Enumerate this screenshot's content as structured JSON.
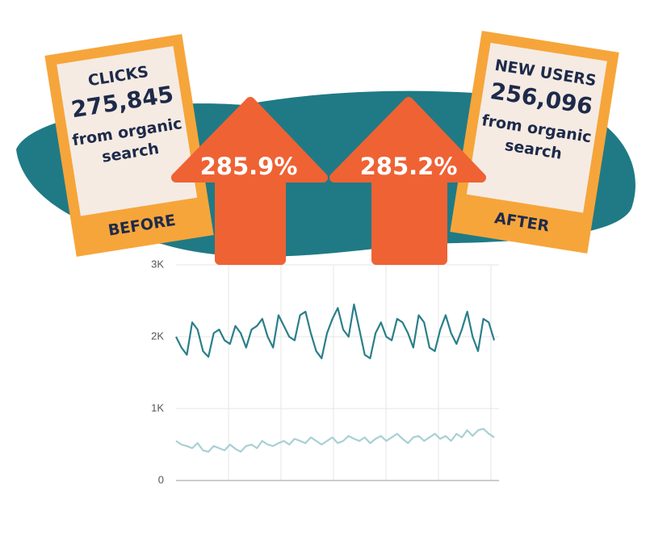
{
  "cards": [
    {
      "label": "CLICKS",
      "value": "275,845",
      "caption": [
        "from organic",
        "search"
      ],
      "tag": "BEFORE"
    },
    {
      "label": "NEW USERS",
      "value": "256,096",
      "caption": [
        "from organic",
        "search"
      ],
      "tag": "AFTER"
    }
  ],
  "arrows": [
    "285.9%",
    "285.2%"
  ],
  "chart_data": {
    "type": "line",
    "ylim": [
      0,
      3000
    ],
    "yticks": [
      0,
      {
        "value": 1000,
        "label": "1K"
      },
      {
        "value": 2000,
        "label": "2K"
      },
      {
        "value": 3000,
        "label": "3K"
      }
    ],
    "grid": true,
    "series": [
      {
        "color": "#2a7f8a",
        "values": [
          2000,
          1850,
          1750,
          2200,
          2100,
          1800,
          1720,
          2050,
          2100,
          1950,
          1900,
          2150,
          2050,
          1850,
          2100,
          2150,
          2250,
          2000,
          1850,
          2300,
          2150,
          2000,
          1950,
          2300,
          2350,
          2050,
          1800,
          1700,
          2050,
          2250,
          2400,
          2100,
          2000,
          2450,
          2100,
          1750,
          1700,
          2050,
          2200,
          2000,
          1950,
          2250,
          2200,
          2050,
          1850,
          2300,
          2200,
          1850,
          1800,
          2100,
          2300,
          2050,
          1900,
          2100,
          2350,
          2000,
          1800,
          2250,
          2200,
          1950
        ]
      },
      {
        "color": "#a8d0d4",
        "values": [
          550,
          500,
          480,
          450,
          520,
          420,
          400,
          480,
          450,
          420,
          500,
          440,
          400,
          480,
          500,
          450,
          550,
          500,
          480,
          520,
          550,
          500,
          580,
          550,
          520,
          600,
          550,
          500,
          550,
          600,
          520,
          550,
          620,
          580,
          550,
          600,
          520,
          580,
          620,
          550,
          600,
          650,
          580,
          520,
          600,
          620,
          550,
          600,
          650,
          580,
          620,
          550,
          650,
          600,
          700,
          620,
          700,
          720,
          650,
          600
        ]
      }
    ]
  }
}
